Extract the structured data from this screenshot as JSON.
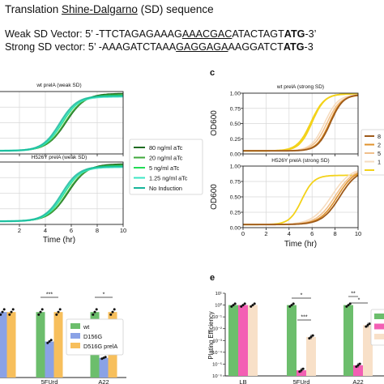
{
  "header": {
    "title_pre": "Translation ",
    "title_underlined": "Shine-Dalgarno",
    "title_post": " (SD) sequence",
    "weak": {
      "pre": "Weak SD Vector: 5’ -TTCTAGAGAAAG",
      "u": "AAACGAC",
      "post": "ATACTAGT",
      "bold": "ATG",
      "end": "-3’"
    },
    "strong": {
      "pre": "Strong SD vector: 5’ -AAAGATCTAAA",
      "u": "GAGGAGA",
      "post": "AAGGATCT",
      "bold": "ATG",
      "end": "-3"
    }
  },
  "colors": {
    "dark_green": "#1e6b22",
    "mid_green": "#3fa83b",
    "bright_green": "#22dc56",
    "cyan": "#3ce6c4",
    "teal": "#17b59a",
    "brown": "#9e5a1a",
    "orange": "#e0922c",
    "tan": "#f0c08c",
    "pale": "#f6dcc0",
    "yellow": "#f3d21a",
    "bar_green": "#6cbe6c",
    "bar_blue": "#8aa2e6",
    "bar_orange": "#f7bf5c",
    "bar_pink": "#f35fb4",
    "bar_cream": "#f8e0c8"
  },
  "chart_data": [
    {
      "id": "growth-weak",
      "type": "line",
      "panels": [
        {
          "title": "wt prelA (weak SD)"
        },
        {
          "title": "H526Y prelA (weak SD)"
        }
      ],
      "xlabel": "Time (hr)",
      "xticks": [
        "2",
        "4",
        "6",
        "8",
        "10"
      ],
      "xlim": [
        0,
        10
      ],
      "ylim": [
        0,
        1.0
      ],
      "grid": true,
      "legend": [
        "80 ng/ml aTc",
        "20 ng/ml aTc",
        "5 ng/ml aTc",
        "1.25 ng/ml aTc",
        "No Induction"
      ],
      "legend_placement": "right"
    },
    {
      "id": "growth-strong",
      "type": "line",
      "panel_letter": "c",
      "panels": [
        {
          "title": "wt prelA (strong SD)"
        },
        {
          "title": "H526Y prelA (strong SD)"
        }
      ],
      "ylabel": "OD600",
      "yticks": [
        "0.00",
        "0.25",
        "0.50",
        "0.75",
        "1.00"
      ],
      "xlabel": "Time (hr)",
      "xticks": [
        "0",
        "2",
        "4",
        "6",
        "8",
        "10"
      ],
      "xlim": [
        0,
        10
      ],
      "ylim": [
        0,
        1.0
      ],
      "grid": true,
      "legend": [
        "8",
        "2",
        "5",
        "1",
        ""
      ],
      "legend_placement": "right"
    },
    {
      "id": "bars-left",
      "type": "bar",
      "categories": [
        "",
        "5FUrd",
        "A22"
      ],
      "series": [
        {
          "name": "wt",
          "values": [
            1.0,
            1.0,
            1.0
          ]
        },
        {
          "name": "D156G",
          "values": [
            1.0,
            0.55,
            0.3
          ]
        },
        {
          "name": "D516G prelA",
          "values": [
            1.0,
            1.0,
            1.0
          ]
        }
      ],
      "significance": [
        "***",
        "*"
      ],
      "legend_placement": "center-right"
    },
    {
      "id": "bars-right",
      "type": "bar",
      "panel_letter": "e",
      "ylabel": "Plating Efficiency",
      "yticks": [
        "10¹",
        "10⁰",
        "10⁻¹",
        "10⁻²",
        "10⁻³",
        "10⁻⁴",
        "10⁻⁵",
        "10⁻⁶"
      ],
      "log_scale": true,
      "ylim": [
        1e-06,
        10
      ],
      "categories": [
        "LB",
        "5FUrd",
        "A22"
      ],
      "series": [
        {
          "values": [
            1.0,
            1.0,
            1.0
          ]
        },
        {
          "values": [
            1.0,
            3e-06,
            8e-06
          ]
        },
        {
          "values": [
            1.0,
            0.002,
            0.02
          ]
        }
      ],
      "significance": [
        "*",
        "***",
        "**",
        "*"
      ]
    }
  ]
}
